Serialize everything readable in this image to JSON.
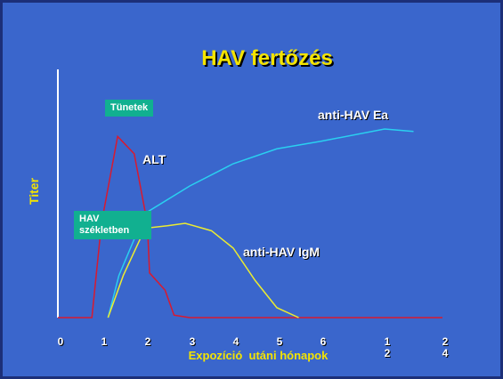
{
  "chart_data": {
    "type": "line",
    "title": "HAV fertőzés",
    "xlabel": "Expozíció  utáni hónapok",
    "ylabel": "Titer",
    "xticks": [
      0,
      1,
      2,
      3,
      4,
      5,
      6,
      {
        "value": 12,
        "label": "1\n2"
      },
      {
        "value": 24,
        "label": "2\n4"
      }
    ],
    "ylim": [
      0,
      100
    ],
    "series": [
      {
        "name": "ALT",
        "color": "#d81a30",
        "x": [
          0,
          0.78,
          1.0,
          1.37,
          1.75,
          2.05,
          2.1,
          2.45,
          2.65,
          3,
          24
        ],
        "values": [
          0,
          0,
          38,
          73,
          66,
          38,
          18,
          11,
          1,
          0,
          0
        ]
      },
      {
        "name": "anti-HAV Ea",
        "color": "#2ad0f0",
        "x": [
          1.15,
          1.4,
          2,
          3,
          4,
          5,
          6,
          12,
          18
        ],
        "values": [
          0,
          17,
          42,
          53,
          62,
          68,
          71,
          76,
          75
        ]
      },
      {
        "name": "anti-HAV IgM",
        "color": "#ecec30",
        "x": [
          1.15,
          1.5,
          2,
          2.5,
          2.9,
          3.5,
          4,
          4.5,
          5,
          5.5
        ],
        "values": [
          0,
          17,
          36,
          37,
          38,
          35,
          28,
          15,
          4,
          0
        ]
      }
    ],
    "annotations": [
      "Tünetek",
      "HAV\nszékletben"
    ]
  }
}
